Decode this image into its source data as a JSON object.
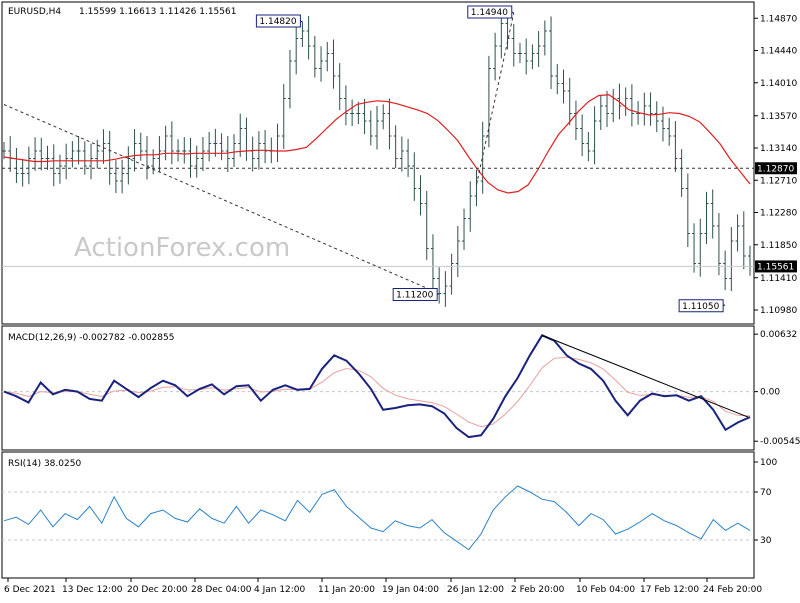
{
  "chart_data": {
    "type": "line",
    "instrument": "EURUSD,H4",
    "ohlc_text": "1.15599 1.16613 1.11426 1.15561",
    "watermark": "ActionForex.com",
    "colors": {
      "price": "#2f4f4f",
      "ma": "#e02020",
      "macd": "#1a237e",
      "signal": "#e8a0a0",
      "rsi": "#2a82c8",
      "grid": "#c8c8c8",
      "axis": "#000000",
      "label_border": "#1a237e"
    },
    "x_tick_labels": [
      "6 Dec 2021",
      "13 Dec 12:00",
      "20 Dec 20:00",
      "28 Dec 04:00",
      "4 Jan 12:00",
      "11 Jan 20:00",
      "19 Jan 04:00",
      "26 Jan 12:00",
      "2 Feb 20:00",
      "10 Feb 04:00",
      "17 Feb 12:00",
      "24 Feb 20:00"
    ],
    "price_panel": {
      "y_tick_labels": [
        "1.14870",
        "1.14440",
        "1.14010",
        "1.13570",
        "1.13140",
        "1.12710",
        "1.12280",
        "1.11850",
        "1.11410",
        "1.10980"
      ],
      "ylim": [
        1.1082,
        1.1506
      ],
      "annotations": [
        {
          "label": "1.14820",
          "point": "high"
        },
        {
          "label": "1.14940",
          "point": "high"
        },
        {
          "label": "1.11200",
          "point": "low"
        },
        {
          "label": "1.11050",
          "point": "low"
        }
      ],
      "levels": [
        {
          "value": 1.1287,
          "label": "1.12870",
          "style": "dotted"
        },
        {
          "value": 1.15561,
          "label": "1.15561",
          "style": "solid-line"
        }
      ],
      "close_points": [
        1.131,
        1.13,
        1.128,
        1.128,
        1.13,
        1.131,
        1.13,
        1.13,
        1.128,
        1.129,
        1.13,
        1.131,
        1.131,
        1.129,
        1.13,
        1.131,
        1.132,
        1.128,
        1.127,
        1.128,
        1.13,
        1.132,
        1.131,
        1.129,
        1.13,
        1.131,
        1.133,
        1.131,
        1.131,
        1.131,
        1.129,
        1.13,
        1.131,
        1.132,
        1.132,
        1.131,
        1.13,
        1.132,
        1.134,
        1.131,
        1.13,
        1.132,
        1.131,
        1.131,
        1.133,
        1.138,
        1.143,
        1.146,
        1.147,
        1.145,
        1.142,
        1.143,
        1.144,
        1.141,
        1.138,
        1.136,
        1.136,
        1.136,
        1.135,
        1.133,
        1.135,
        1.136,
        1.133,
        1.13,
        1.131,
        1.129,
        1.126,
        1.124,
        1.118,
        1.114,
        1.112,
        1.113,
        1.116,
        1.119,
        1.122,
        1.125,
        1.127,
        1.133,
        1.142,
        1.145,
        1.148,
        1.146,
        1.144,
        1.144,
        1.143,
        1.144,
        1.145,
        1.147,
        1.141,
        1.14,
        1.139,
        1.136,
        1.134,
        1.132,
        1.131,
        1.135,
        1.137,
        1.136,
        1.138,
        1.137,
        1.138,
        1.136,
        1.136,
        1.137,
        1.136,
        1.135,
        1.134,
        1.133,
        1.13,
        1.126,
        1.12,
        1.116,
        1.12,
        1.124,
        1.121,
        1.116,
        1.114,
        1.119,
        1.121,
        1.117,
        1.1156
      ],
      "ma_points": [
        1.1302,
        1.13,
        1.1298,
        1.1296,
        1.1296,
        1.1297,
        1.1297,
        1.1297,
        1.1297,
        1.1297,
        1.1297,
        1.1299,
        1.1302,
        1.1304,
        1.1305,
        1.1305,
        1.1307,
        1.1307,
        1.1306,
        1.1307,
        1.1307,
        1.1307,
        1.1307,
        1.1309,
        1.131,
        1.1311,
        1.1311,
        1.131,
        1.131,
        1.1312,
        1.1315,
        1.1327,
        1.134,
        1.1353,
        1.1363,
        1.1372,
        1.1375,
        1.1377,
        1.1376,
        1.1373,
        1.1369,
        1.1365,
        1.136,
        1.1351,
        1.1338,
        1.1324,
        1.1304,
        1.1285,
        1.1268,
        1.1258,
        1.1254,
        1.1256,
        1.1265,
        1.1286,
        1.131,
        1.1332,
        1.1347,
        1.1363,
        1.1376,
        1.1384,
        1.1385,
        1.1376,
        1.1365,
        1.1361,
        1.1358,
        1.1359,
        1.1361,
        1.136,
        1.1356,
        1.1349,
        1.1335,
        1.132,
        1.13,
        1.1283,
        1.1266
      ]
    },
    "macd_panel": {
      "label": "MACD(12,26,9) -0.002782 -0.002855",
      "y_tick_labels": [
        "0.00632",
        "0.00",
        "-0.005455"
      ],
      "ylim": [
        -0.0062,
        0.007
      ],
      "macd_points": [
        0.0,
        -0.0005,
        -0.0012,
        0.001,
        -0.0003,
        0.0002,
        0.0,
        -0.0008,
        -0.001,
        0.0012,
        0.0003,
        -0.0006,
        0.0004,
        0.0012,
        0.0007,
        -0.0005,
        0.0003,
        0.0008,
        -0.0003,
        0.0006,
        0.0007,
        -0.001,
        0.0002,
        0.0007,
        0.0002,
        0.0003,
        0.0025,
        0.004,
        0.0034,
        0.002,
        0.0003,
        -0.002,
        -0.0018,
        -0.0015,
        -0.0014,
        -0.0016,
        -0.0024,
        -0.004,
        -0.005,
        -0.0048,
        -0.003,
        -0.0005,
        0.0015,
        0.004,
        0.0062,
        0.0056,
        0.004,
        0.0031,
        0.0025,
        0.0012,
        -0.001,
        -0.0026,
        -0.001,
        -0.0002,
        -0.0005,
        -0.0004,
        -0.001,
        -0.0005,
        -0.002,
        -0.0042,
        -0.0034,
        -0.0028
      ],
      "trendline": "descending from 0.0062 peak"
    },
    "rsi_panel": {
      "label": "RSI(14) 38.0250",
      "y_tick_labels": [
        "100",
        "70",
        "30"
      ],
      "ylim": [
        0,
        100
      ],
      "levels": [
        70,
        30
      ],
      "rsi_points": [
        46,
        49,
        43,
        55,
        41,
        52,
        47,
        58,
        44,
        66,
        48,
        41,
        52,
        55,
        48,
        45,
        56,
        48,
        44,
        58,
        44,
        55,
        51,
        46,
        63,
        53,
        68,
        72,
        58,
        49,
        40,
        37,
        46,
        42,
        40,
        47,
        36,
        29,
        22,
        35,
        55,
        66,
        75,
        70,
        64,
        62,
        53,
        42,
        52,
        47,
        35,
        39,
        45,
        52,
        46,
        42,
        36,
        31,
        47,
        38,
        44,
        38
      ]
    }
  }
}
